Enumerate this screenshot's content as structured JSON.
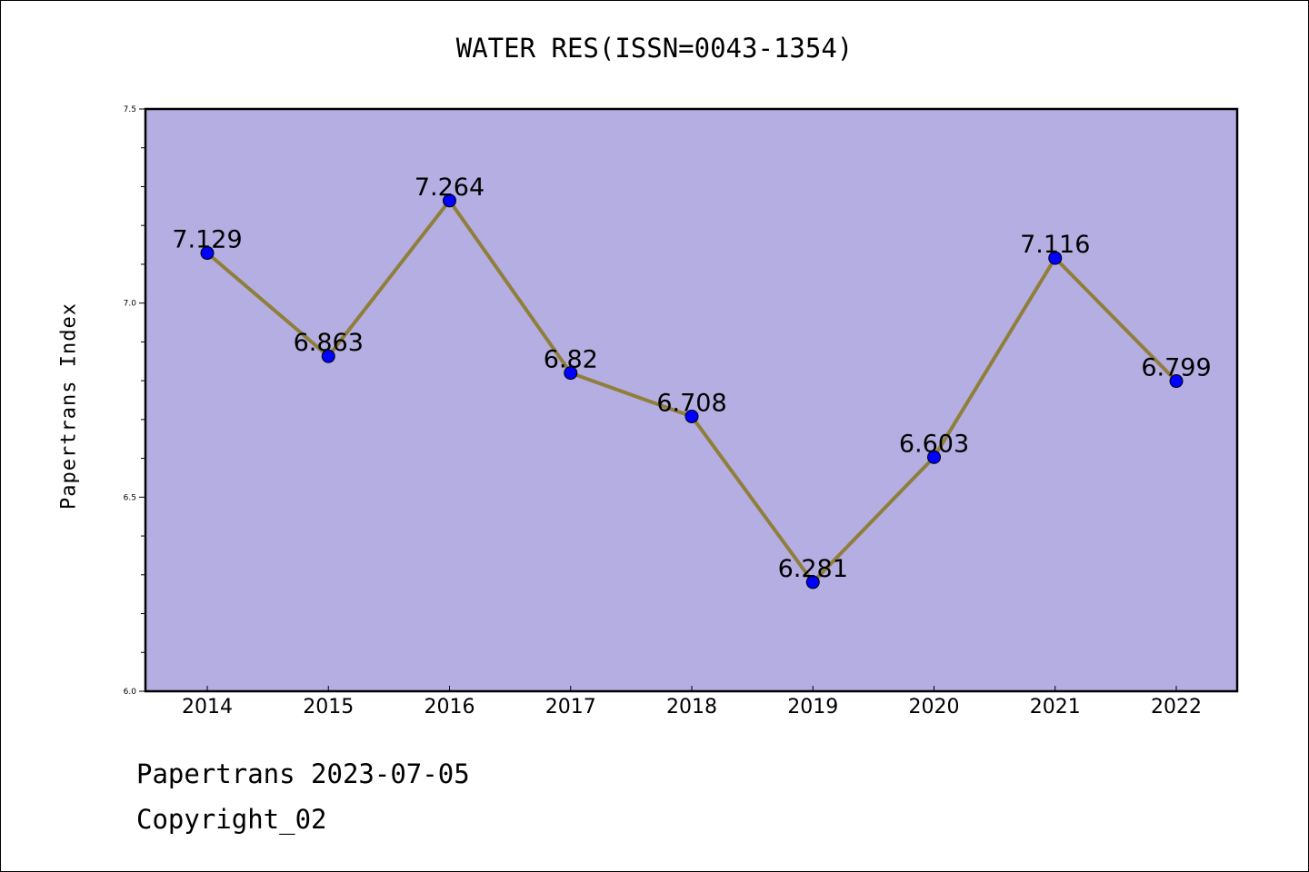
{
  "chart_data": {
    "type": "line",
    "title": "WATER RES(ISSN=0043-1354)",
    "xlabel": "",
    "ylabel": "Papertrans Index",
    "categories": [
      "2014",
      "2015",
      "2016",
      "2017",
      "2018",
      "2019",
      "2020",
      "2021",
      "2022"
    ],
    "series": [
      {
        "values": [
          7.129,
          6.863,
          7.264,
          6.82,
          6.708,
          6.281,
          6.603,
          7.116,
          6.799
        ],
        "labels": [
          "7.129",
          "6.863",
          "7.264",
          "6.82",
          "6.708",
          "6.281",
          "6.603",
          "7.116",
          "6.799"
        ]
      }
    ],
    "ylim": [
      6.0,
      7.5
    ],
    "y_ticks": [
      "6.0",
      "6.5",
      "7.0",
      "7.5"
    ],
    "grid": false,
    "colors": {
      "plot_background": "#b5aee2",
      "line": "#8f7f3a",
      "marker": "#0000ff"
    }
  },
  "footer": {
    "date_line": "Papertrans 2023-07-05",
    "copyright": "Copyright_02"
  }
}
